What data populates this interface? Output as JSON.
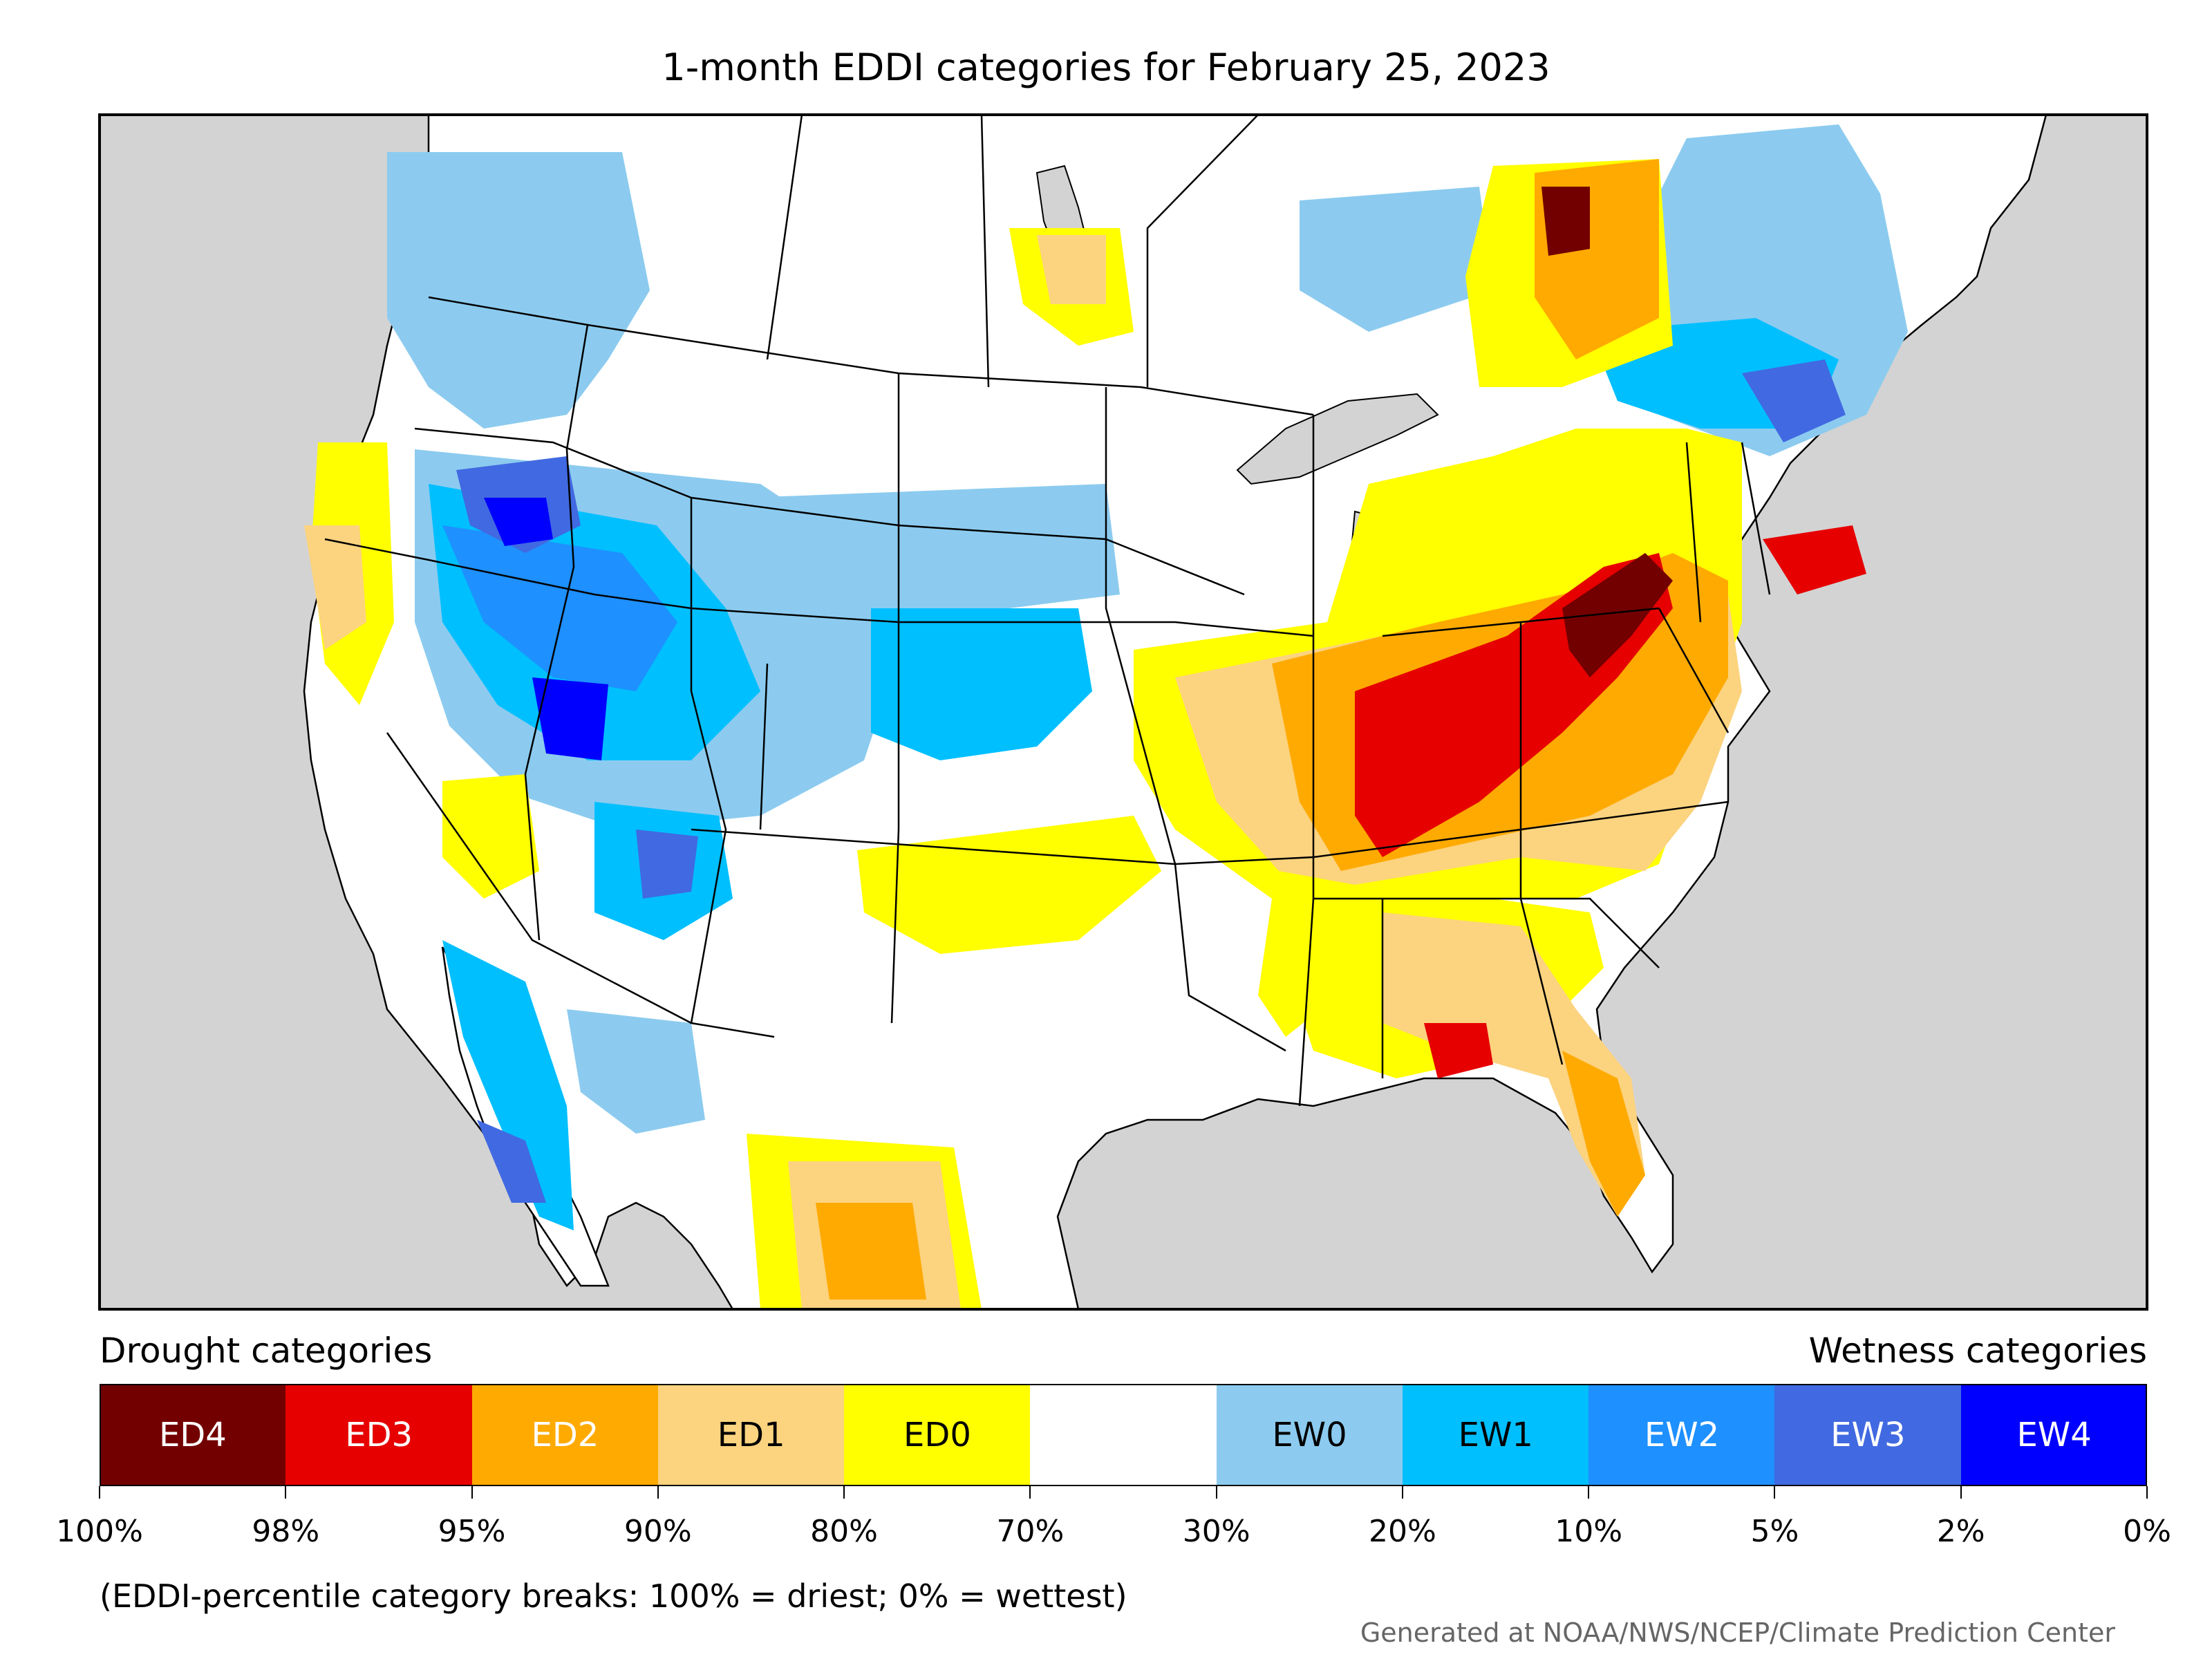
{
  "title": "1-month EDDI categories for February 25, 2023",
  "legend": {
    "drought_caption": "Drought categories",
    "wetness_caption": "Wetness categories",
    "categories": [
      {
        "label": "ED4",
        "color": "#730000",
        "text_color": "#ffffff"
      },
      {
        "label": "ED3",
        "color": "#e60000",
        "text_color": "#ffffff"
      },
      {
        "label": "ED2",
        "color": "#ffaa00",
        "text_color": "#ffffff"
      },
      {
        "label": "ED1",
        "color": "#fcd37f",
        "text_color": "#000000"
      },
      {
        "label": "ED0",
        "color": "#ffff00",
        "text_color": "#000000"
      },
      {
        "label": "",
        "color": "#ffffff",
        "text_color": "#000000"
      },
      {
        "label": "EW0",
        "color": "#8ccbef",
        "text_color": "#000000"
      },
      {
        "label": "EW1",
        "color": "#00bfff",
        "text_color": "#000000"
      },
      {
        "label": "EW2",
        "color": "#1e90ff",
        "text_color": "#ffffff"
      },
      {
        "label": "EW3",
        "color": "#4169e1",
        "text_color": "#ffffff"
      },
      {
        "label": "EW4",
        "color": "#0000ff",
        "text_color": "#ffffff"
      }
    ],
    "breaks": [
      "100%",
      "98%",
      "95%",
      "90%",
      "80%",
      "70%",
      "30%",
      "20%",
      "10%",
      "5%",
      "2%",
      "0%"
    ]
  },
  "note": "(EDDI-percentile category breaks: 100% = driest; 0% = wettest)",
  "credit": "Generated at NOAA/NWS/NCEP/Climate Prediction Center",
  "map": {
    "ocean_color": "#d3d3d3",
    "land_color": "#ffffff",
    "lake_color": "#d3d3d3"
  }
}
